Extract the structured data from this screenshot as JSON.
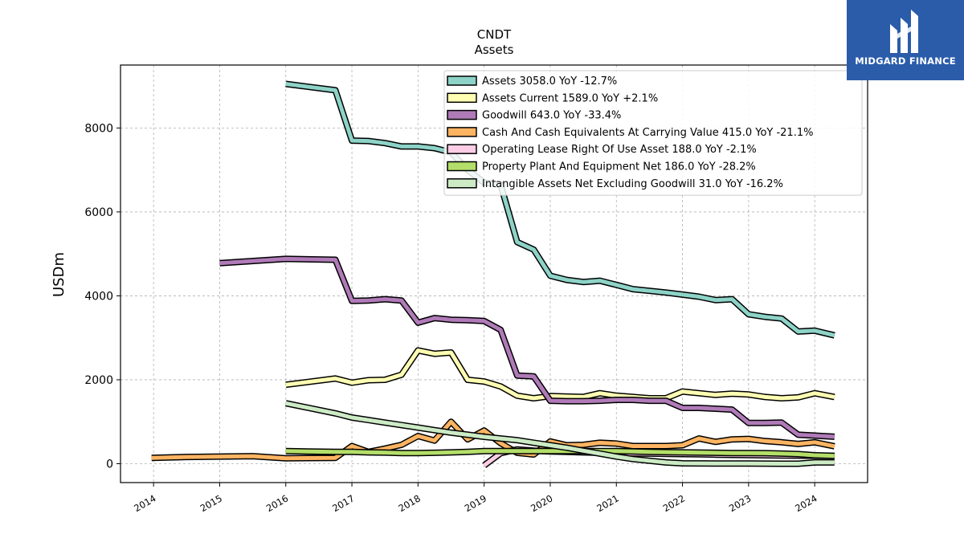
{
  "chart_data": {
    "type": "line",
    "title": "CNDT",
    "subtitle": "Assets",
    "xlabel": "",
    "ylabel": "USDm",
    "xlim": [
      2013.5,
      2024.8
    ],
    "ylim": [
      -450,
      9500
    ],
    "yticks": [
      0,
      2000,
      4000,
      6000,
      8000
    ],
    "xticks": [
      "2014",
      "2015",
      "2016",
      "2017",
      "2018",
      "2019",
      "2020",
      "2021",
      "2022",
      "2023",
      "2024"
    ],
    "grid": true,
    "legend_position": "top-right",
    "series": [
      {
        "name": "Assets",
        "legend": "Assets  3058.0 YoY -12.7%",
        "color": "#8dd3c7",
        "x": [
          2016.0,
          2016.75,
          2017.0,
          2017.25,
          2017.5,
          2017.75,
          2018.0,
          2018.25,
          2018.5,
          2018.75,
          2019.0,
          2019.25,
          2019.5,
          2019.75,
          2020.0,
          2020.25,
          2020.5,
          2020.75,
          2021.0,
          2021.25,
          2021.5,
          2021.75,
          2022.0,
          2022.25,
          2022.5,
          2022.75,
          2023.0,
          2023.25,
          2023.5,
          2023.75,
          2024.0,
          2024.3
        ],
        "y": [
          9050,
          8900,
          7700,
          7690,
          7640,
          7560,
          7560,
          7520,
          7420,
          7000,
          6700,
          6650,
          5280,
          5100,
          4480,
          4380,
          4330,
          4360,
          4260,
          4160,
          4120,
          4080,
          4030,
          3980,
          3900,
          3920,
          3560,
          3500,
          3460,
          3150,
          3170,
          3058
        ]
      },
      {
        "name": "Assets Current",
        "legend": "Assets Current  1589.0 YoY +2.1%",
        "color": "#ffffb3",
        "x": [
          2016.0,
          2016.75,
          2017.0,
          2017.25,
          2017.5,
          2017.75,
          2018.0,
          2018.25,
          2018.5,
          2018.75,
          2019.0,
          2019.25,
          2019.5,
          2019.75,
          2020.0,
          2020.25,
          2020.5,
          2020.75,
          2021.0,
          2021.25,
          2021.5,
          2021.75,
          2022.0,
          2022.25,
          2022.5,
          2022.75,
          2023.0,
          2023.25,
          2023.5,
          2023.75,
          2024.0,
          2024.3
        ],
        "y": [
          1880,
          2030,
          1930,
          1990,
          2000,
          2120,
          2700,
          2620,
          2650,
          2000,
          1960,
          1840,
          1620,
          1560,
          1610,
          1600,
          1590,
          1680,
          1620,
          1590,
          1560,
          1560,
          1720,
          1680,
          1640,
          1670,
          1650,
          1590,
          1560,
          1580,
          1680,
          1589
        ]
      },
      {
        "name": "Goodwill",
        "legend": "Goodwill  643.0 YoY -33.4%",
        "color": "#b07ab8",
        "x": [
          2015.0,
          2016.0,
          2016.75,
          2017.0,
          2017.25,
          2017.5,
          2017.75,
          2018.0,
          2018.25,
          2018.5,
          2018.75,
          2019.0,
          2019.25,
          2019.5,
          2019.75,
          2020.0,
          2020.25,
          2020.5,
          2020.75,
          2021.0,
          2021.25,
          2021.5,
          2021.75,
          2022.0,
          2022.25,
          2022.5,
          2022.75,
          2023.0,
          2023.25,
          2023.5,
          2023.75,
          2024.0,
          2024.3
        ],
        "y": [
          4780,
          4880,
          4860,
          3880,
          3890,
          3920,
          3890,
          3360,
          3470,
          3430,
          3420,
          3400,
          3190,
          2100,
          2080,
          1500,
          1490,
          1490,
          1500,
          1520,
          1520,
          1500,
          1500,
          1330,
          1330,
          1310,
          1290,
          970,
          970,
          980,
          690,
          670,
          643
        ]
      },
      {
        "name": "Cash And Cash Equivalents At Carrying Value",
        "legend": "Cash And Cash Equivalents At Carrying Value  415.0 YoY -21.1%",
        "color": "#fdb462",
        "x": [
          2013.97,
          2014.5,
          2015.0,
          2015.5,
          2016.0,
          2016.75,
          2017.0,
          2017.25,
          2017.5,
          2017.75,
          2018.0,
          2018.25,
          2018.5,
          2018.75,
          2019.0,
          2019.25,
          2019.5,
          2019.75,
          2020.0,
          2020.25,
          2020.5,
          2020.75,
          2021.0,
          2021.25,
          2021.5,
          2021.75,
          2022.0,
          2022.25,
          2022.5,
          2022.75,
          2023.0,
          2023.25,
          2023.5,
          2023.75,
          2024.0,
          2024.3
        ],
        "y": [
          140,
          160,
          170,
          180,
          130,
          140,
          420,
          280,
          360,
          450,
          660,
          550,
          1000,
          580,
          790,
          490,
          260,
          220,
          530,
          440,
          450,
          500,
          480,
          420,
          420,
          420,
          440,
          600,
          520,
          580,
          590,
          540,
          510,
          470,
          510,
          415
        ]
      },
      {
        "name": "Operating Lease Right Of Use Asset",
        "legend": "Operating Lease Right Of Use Asset  188.0 YoY -2.1%",
        "color": "#fccde5",
        "x": [
          2019.0,
          2019.25,
          2019.5,
          2019.75,
          2020.0,
          2020.25,
          2020.5,
          2020.75,
          2021.0,
          2021.25,
          2021.5,
          2021.75,
          2022.0,
          2022.25,
          2022.5,
          2022.75,
          2023.0,
          2023.25,
          2023.5,
          2023.75,
          2024.0,
          2024.3
        ],
        "y": [
          -40,
          250,
          340,
          310,
          290,
          280,
          270,
          260,
          250,
          245,
          240,
          235,
          230,
          225,
          215,
          210,
          205,
          200,
          195,
          192,
          190,
          188
        ]
      },
      {
        "name": "Property Plant And Equipment Net",
        "legend": "Property Plant And Equipment Net  186.0 YoY -28.2%",
        "color": "#b3de69",
        "x": [
          2016.0,
          2016.75,
          2017.0,
          2017.25,
          2017.5,
          2017.75,
          2018.0,
          2018.25,
          2018.5,
          2018.75,
          2019.0,
          2019.25,
          2019.5,
          2019.75,
          2020.0,
          2020.25,
          2020.5,
          2020.75,
          2021.0,
          2021.25,
          2021.5,
          2021.75,
          2022.0,
          2022.25,
          2022.5,
          2022.75,
          2023.0,
          2023.25,
          2023.5,
          2023.75,
          2024.0,
          2024.3
        ],
        "y": [
          300,
          280,
          280,
          270,
          265,
          255,
          255,
          260,
          270,
          280,
          300,
          300,
          300,
          300,
          300,
          300,
          300,
          300,
          300,
          290,
          280,
          275,
          270,
          265,
          260,
          255,
          255,
          250,
          240,
          230,
          200,
          186
        ]
      },
      {
        "name": "Intangible Assets Net Excluding Goodwill",
        "legend": "Intangible Assets Net Excluding Goodwill  31.0 YoY -16.2%",
        "color": "#ccebc5",
        "x": [
          2016.0,
          2016.75,
          2017.0,
          2017.25,
          2017.5,
          2017.75,
          2018.0,
          2018.25,
          2018.5,
          2018.75,
          2019.0,
          2019.25,
          2019.5,
          2019.75,
          2020.0,
          2020.25,
          2020.5,
          2020.75,
          2021.0,
          2021.25,
          2021.5,
          2021.75,
          2022.0,
          2022.25,
          2022.5,
          2022.75,
          2023.0,
          2023.25,
          2023.5,
          2023.75,
          2024.0,
          2024.3
        ],
        "y": [
          1440,
          1200,
          1100,
          1040,
          980,
          920,
          860,
          800,
          740,
          690,
          640,
          600,
          560,
          500,
          440,
          380,
          310,
          240,
          170,
          110,
          70,
          30,
          10,
          8,
          5,
          4,
          3,
          2,
          0,
          0,
          31,
          31
        ]
      }
    ]
  },
  "logo": {
    "text": "MIDGARD FINANCE",
    "background": "#2a5caa"
  }
}
